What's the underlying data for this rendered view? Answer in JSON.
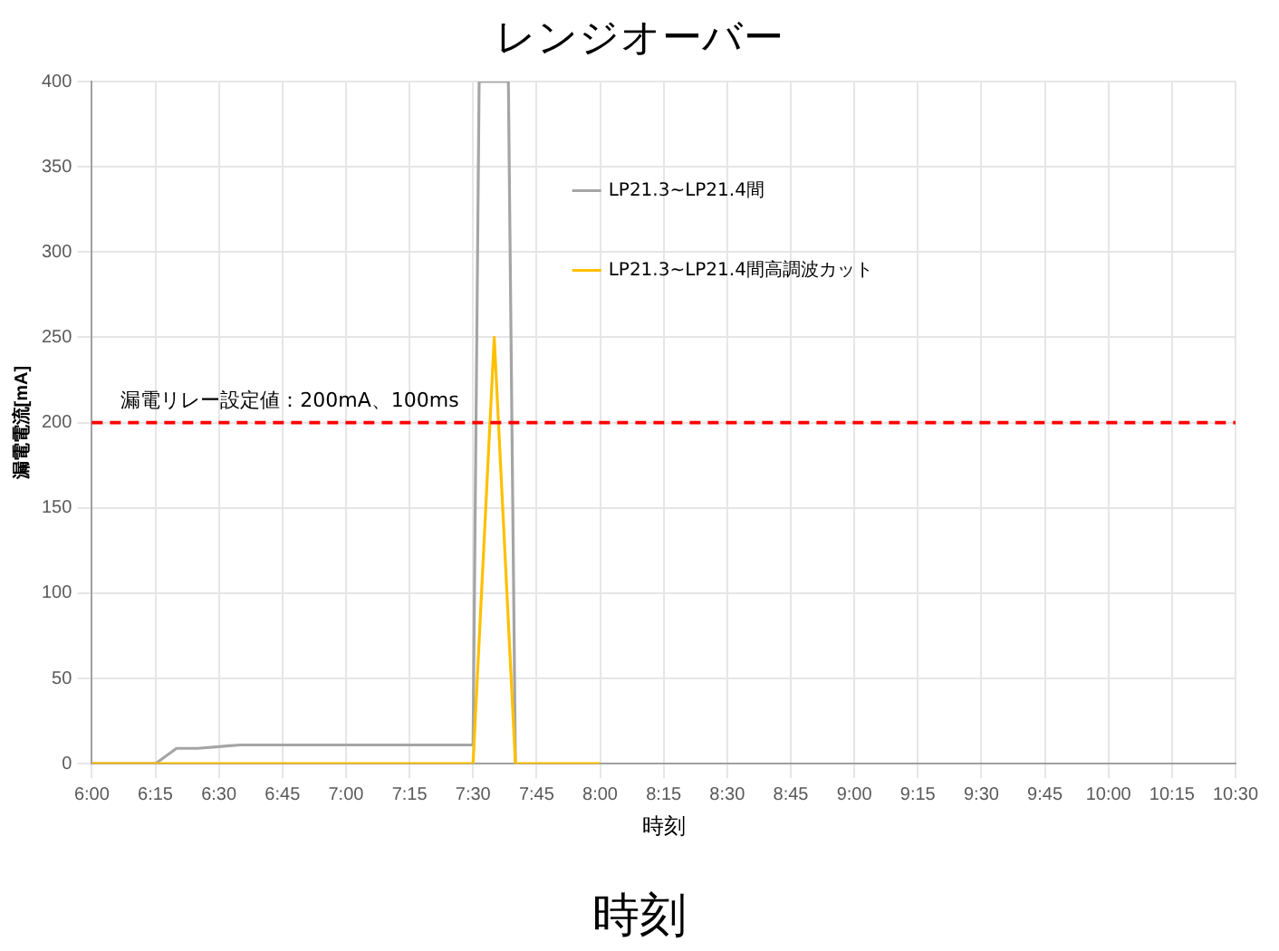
{
  "chart_data": {
    "type": "line",
    "title": "レンジオーバー",
    "xlabel": "時刻",
    "ylabel": "漏電電流[mA]",
    "annotations": [
      "時刻"
    ],
    "xlim": [
      6,
      10.5
    ],
    "xticks": [
      {
        "value": 6,
        "label": "6:00"
      },
      {
        "value": 6.25,
        "label": "6:15"
      },
      {
        "value": 6.5,
        "label": "6:30"
      },
      {
        "value": 6.75,
        "label": "6:45"
      },
      {
        "value": 7,
        "label": "7:00"
      },
      {
        "value": 7.25,
        "label": "7:15"
      },
      {
        "value": 7.5,
        "label": "7:30"
      },
      {
        "value": 7.75,
        "label": "7:45"
      },
      {
        "value": 8,
        "label": "8:00"
      },
      {
        "value": 8.25,
        "label": "8:15"
      },
      {
        "value": 8.5,
        "label": "8:30"
      },
      {
        "value": 8.75,
        "label": "8:45"
      },
      {
        "value": 9,
        "label": "9:00"
      },
      {
        "value": 9.25,
        "label": "9:15"
      },
      {
        "value": 9.5,
        "label": "9:30"
      },
      {
        "value": 9.75,
        "label": "9:45"
      },
      {
        "value": 10,
        "label": "10:00"
      },
      {
        "value": 10.25,
        "label": "10:15"
      },
      {
        "value": 10.5,
        "label": "10:30"
      }
    ],
    "ylim": [
      0,
      400
    ],
    "yticks": [
      0,
      50,
      100,
      150,
      200,
      250,
      300,
      350,
      400
    ],
    "grid": true,
    "legend": "top",
    "marker": "none",
    "line_style": "solid",
    "ref_lines": [
      {
        "axis": "y",
        "value": 200,
        "label": "漏電リレー設定値：200mA、100ms",
        "color": "#ff0000",
        "line_style": "dashed"
      }
    ],
    "series": [
      {
        "name": "LP21.3~LP21.4間",
        "color": "#a5a5a5",
        "x": [
          6,
          6.0833,
          6.1667,
          6.25,
          6.3333,
          6.4167,
          6.5,
          6.5833,
          6.6667,
          6.75,
          6.8333,
          6.9167,
          7,
          7.0833,
          7.1667,
          7.25,
          7.3333,
          7.4167,
          7.5,
          7.524,
          7.639,
          7.6667
        ],
        "values": [
          0,
          0,
          0,
          0,
          9,
          9,
          10,
          11,
          11,
          11,
          11,
          11,
          11,
          11,
          11,
          11,
          11,
          11,
          11,
          400,
          400,
          0
        ]
      },
      {
        "name": "LP21.3~LP21.4間高調波カット",
        "color": "#ffc000",
        "x": [
          6,
          6.0833,
          6.1667,
          6.25,
          6.3333,
          6.4167,
          6.5,
          6.5833,
          6.6667,
          6.75,
          6.8333,
          6.9167,
          7,
          7.0833,
          7.1667,
          7.25,
          7.3333,
          7.4167,
          7.5,
          7.5833,
          7.6667,
          7.75,
          7.8333,
          7.9167,
          8
        ],
        "values": [
          0,
          0,
          0,
          0,
          0,
          0,
          0,
          0,
          0,
          0,
          0,
          0,
          0,
          0,
          0,
          0,
          0,
          0,
          0,
          250,
          0,
          0,
          0,
          0,
          0
        ]
      }
    ]
  }
}
